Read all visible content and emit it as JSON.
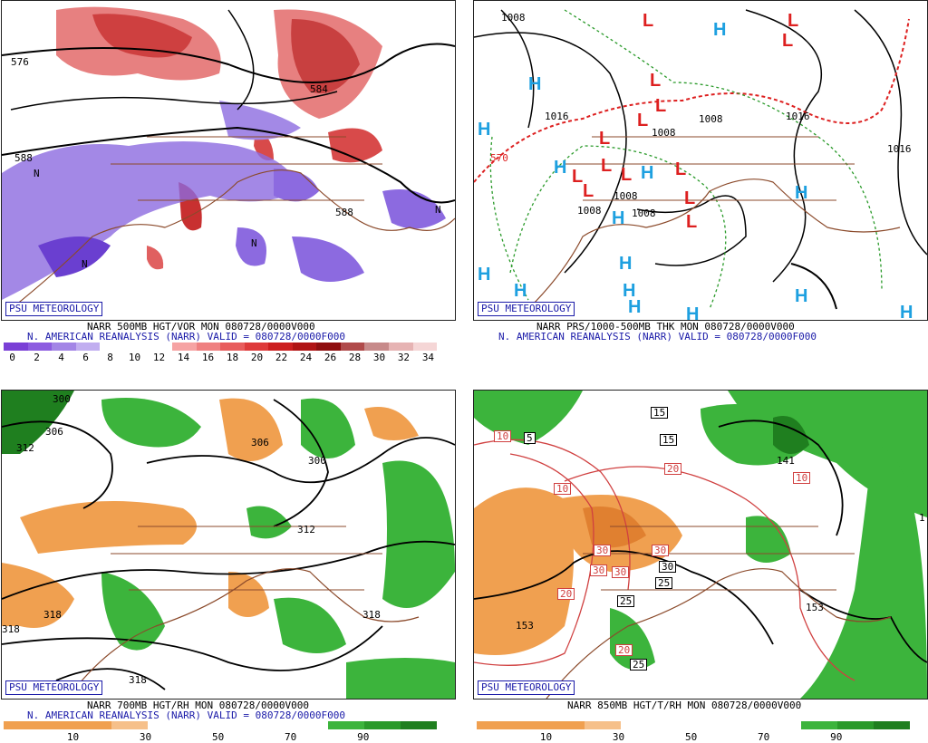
{
  "panels": [
    {
      "brand": "PSU METEOROLOGY",
      "title": "NARR 500MB HGT/VOR MON 080728/0000V000",
      "subtitle": "N. AMERICAN REANALYSIS (NARR) VALID = 080728/0000F000",
      "contours": [
        "576",
        "588",
        "588",
        "584",
        "N",
        "N",
        "N",
        "N"
      ],
      "colorbar": {
        "labels": [
          "0",
          "2",
          "4",
          "6",
          "8",
          "10",
          "12",
          "14",
          "16",
          "18",
          "20",
          "22",
          "24",
          "26",
          "28",
          "30",
          "32",
          "34"
        ],
        "colors": [
          "#7a3fd6",
          "#8d5ce0",
          "#a385e6",
          "#c1aef0",
          "#ffffff",
          "#ffffff",
          "#ffffff",
          "#f6a3a3",
          "#ef8080",
          "#e85c5c",
          "#de3a3a",
          "#cc1f1f",
          "#b01414",
          "#8f0e0e",
          "#b04a4a",
          "#c78a8a",
          "#e6b3b3",
          "#f5d6d6"
        ]
      }
    },
    {
      "brand": "PSU METEOROLOGY",
      "title": "NARR PRS/1000-500MB THK MON 080728/0000V000",
      "subtitle": "N. AMERICAN REANALYSIS (NARR) VALID = 080728/0000F000",
      "contours": [
        "1008",
        "1016",
        "570",
        "1008",
        "1008",
        "1008",
        "1008",
        "1016",
        "1016",
        "1008"
      ]
    },
    {
      "brand": "PSU METEOROLOGY",
      "title": "NARR 700MB HGT/RH MON 080728/0000V000",
      "subtitle": "N. AMERICAN REANALYSIS (NARR) VALID = 080728/0000F000",
      "contours": [
        "300",
        "306",
        "312",
        "306",
        "300",
        "312",
        "318",
        "318",
        "318",
        "318"
      ],
      "colorbar": {
        "labels": [
          "10",
          "30",
          "50",
          "70",
          "90"
        ],
        "colors": [
          "#f0a050",
          "#f0a050",
          "#f0a050",
          "#f6c08a",
          "#ffffff",
          "#ffffff",
          "#ffffff",
          "#ffffff",
          "#ffffff",
          "#3cb43c",
          "#2a9a2a",
          "#1f7f1f"
        ]
      }
    },
    {
      "brand": "PSU METEOROLOGY",
      "title": "NARR 850MB HGT/T/RH MON 080728/0000V000",
      "contours": [
        "153",
        "153",
        "141",
        "1",
        "15",
        "15",
        "10",
        "10",
        "5",
        "10",
        "20",
        "20",
        "30",
        "30",
        "30",
        "30",
        "30",
        "25",
        "25",
        "20",
        "25"
      ],
      "colorbar": {
        "labels": [
          "10",
          "30",
          "50",
          "70",
          "90"
        ],
        "colors": [
          "#f0a050",
          "#f0a050",
          "#f0a050",
          "#f6c08a",
          "#ffffff",
          "#ffffff",
          "#ffffff",
          "#ffffff",
          "#ffffff",
          "#3cb43c",
          "#2a9a2a",
          "#1f7f1f"
        ]
      }
    }
  ]
}
